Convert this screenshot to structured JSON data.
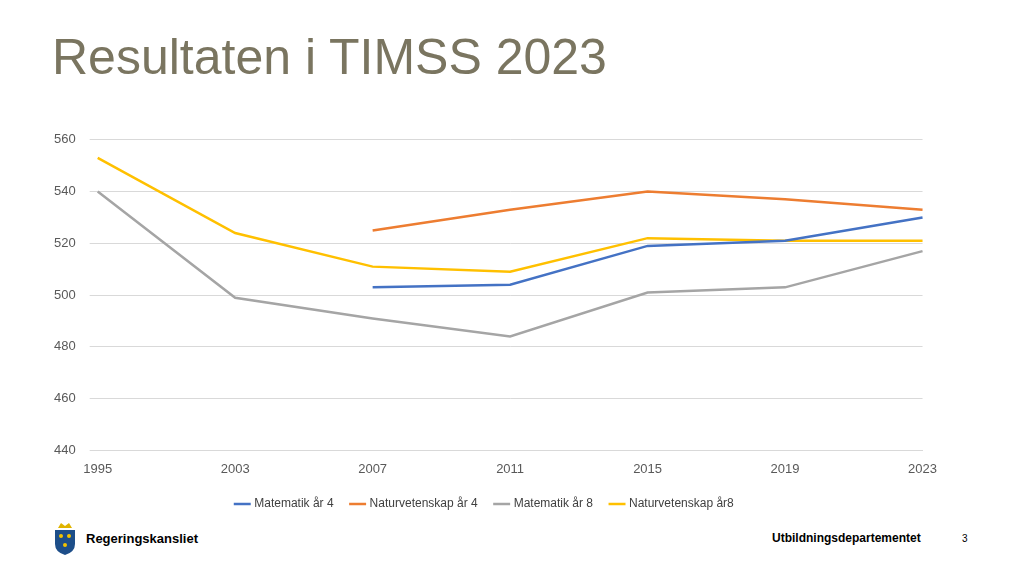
{
  "chart_data": {
    "type": "line",
    "title": "Resultaten i TIMSS 2023",
    "categories": [
      "1995",
      "2003",
      "2007",
      "2011",
      "2015",
      "2019",
      "2023"
    ],
    "series": [
      {
        "name": "Matematik år 4",
        "color": "#4472c4",
        "values": [
          null,
          null,
          503,
          504,
          519,
          521,
          530
        ]
      },
      {
        "name": "Naturvetenskap år 4",
        "color": "#ed7d31",
        "values": [
          null,
          null,
          525,
          533,
          540,
          537,
          533
        ]
      },
      {
        "name": "Matematik år 8",
        "color": "#a5a5a5",
        "values": [
          540,
          499,
          491,
          484,
          501,
          503,
          517
        ]
      },
      {
        "name": "Naturvetenskap år8",
        "color": "#ffc000",
        "values": [
          553,
          524,
          511,
          509,
          522,
          521,
          521
        ]
      }
    ],
    "ylim": [
      440,
      560
    ],
    "yticks": [
      440,
      460,
      480,
      500,
      520,
      540,
      560
    ],
    "grid": true,
    "legend": "bottom",
    "marker": "none"
  },
  "footer": {
    "left": "Regeringskansliet",
    "right": "Utbildningsdepartementet",
    "page": 3
  }
}
